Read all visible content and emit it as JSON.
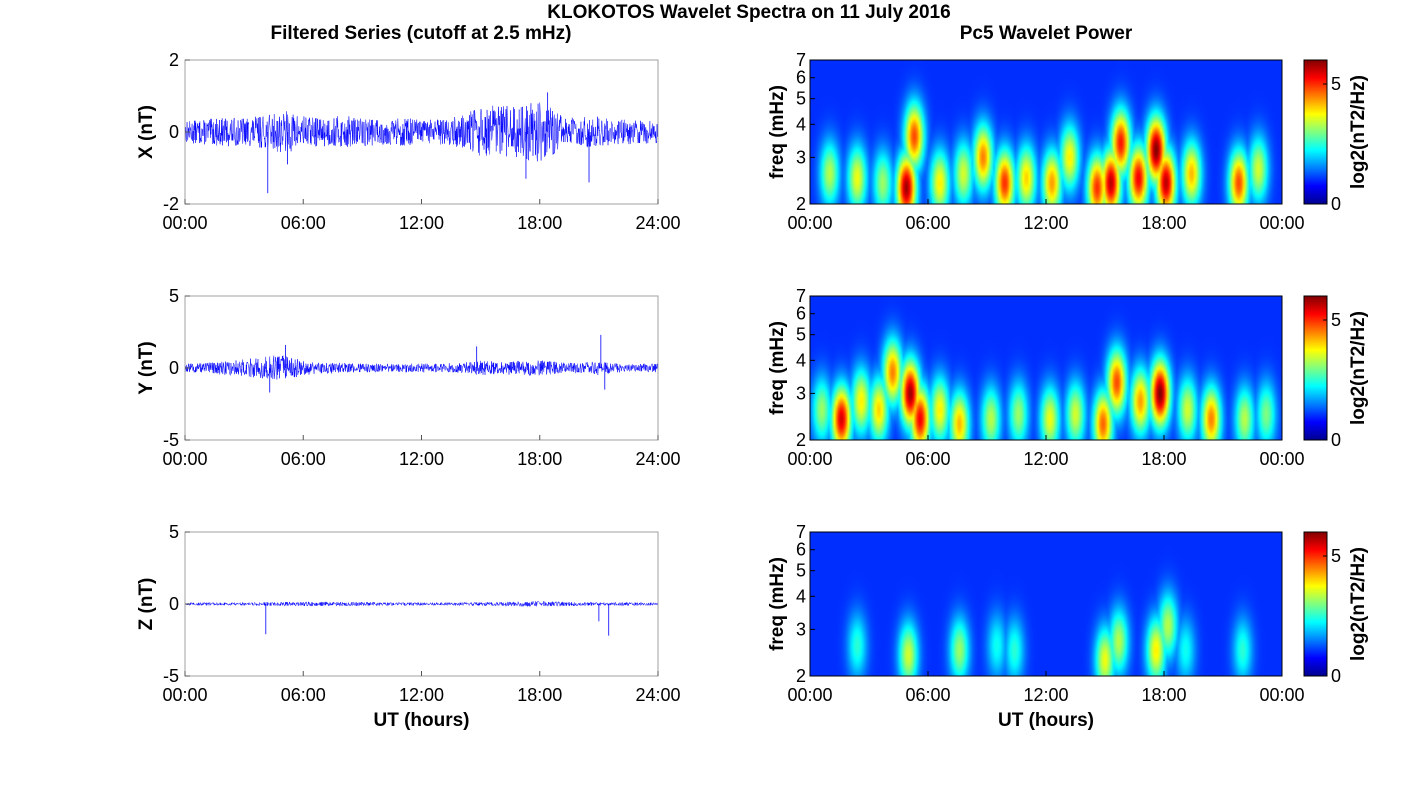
{
  "figure": {
    "title": "KLOKOTOS Wavelet Spectra on 11 July 2016",
    "left_title": "Filtered Series (cutoff at 2.5 mHz)",
    "right_title": "Pc5 Wavelet Power"
  },
  "chart_data": [
    {
      "type": "line",
      "component": "X",
      "ylabel": "X (nT)",
      "ylim": [
        -2,
        2
      ],
      "yticks": [
        "2",
        "0",
        "-2"
      ],
      "xlim": [
        "00:00",
        "24:00"
      ],
      "xticks": [
        "00:00",
        "06:00",
        "12:00",
        "18:00",
        "24:00"
      ],
      "xlabel": "",
      "series_color": "#0000ff",
      "envelope": {
        "hours": [
          0,
          1,
          2,
          3,
          4,
          5,
          6,
          7,
          8,
          9,
          10,
          11,
          12,
          13,
          14,
          15,
          16,
          17,
          18,
          19,
          20,
          21,
          22,
          23,
          24
        ],
        "amplitude_nT": [
          0.3,
          0.35,
          0.4,
          0.4,
          0.45,
          0.6,
          0.45,
          0.4,
          0.45,
          0.4,
          0.35,
          0.4,
          0.35,
          0.35,
          0.45,
          0.7,
          0.75,
          0.7,
          0.9,
          0.5,
          0.4,
          0.45,
          0.35,
          0.35,
          0.3
        ]
      },
      "spikes": [
        {
          "hour": 4.2,
          "value_nT": -1.7
        },
        {
          "hour": 5.2,
          "value_nT": -0.9
        },
        {
          "hour": 17.3,
          "value_nT": -1.3
        },
        {
          "hour": 18.4,
          "value_nT": 1.1
        },
        {
          "hour": 20.5,
          "value_nT": -1.4
        }
      ]
    },
    {
      "type": "line",
      "component": "Y",
      "ylabel": "Y (nT)",
      "ylim": [
        -5,
        5
      ],
      "yticks": [
        "5",
        "0",
        "-5"
      ],
      "xlim": [
        "00:00",
        "24:00"
      ],
      "xticks": [
        "00:00",
        "06:00",
        "12:00",
        "18:00",
        "24:00"
      ],
      "xlabel": "",
      "series_color": "#0000ff",
      "envelope": {
        "hours": [
          0,
          1,
          2,
          3,
          4,
          5,
          6,
          7,
          8,
          9,
          10,
          11,
          12,
          13,
          14,
          15,
          16,
          17,
          18,
          19,
          20,
          21,
          22,
          23,
          24
        ],
        "amplitude_nT": [
          0.3,
          0.35,
          0.5,
          0.6,
          0.8,
          0.9,
          0.5,
          0.4,
          0.35,
          0.3,
          0.3,
          0.3,
          0.3,
          0.3,
          0.4,
          0.5,
          0.45,
          0.5,
          0.6,
          0.4,
          0.35,
          0.5,
          0.3,
          0.3,
          0.3
        ]
      },
      "spikes": [
        {
          "hour": 4.3,
          "value_nT": -1.7
        },
        {
          "hour": 5.1,
          "value_nT": 1.6
        },
        {
          "hour": 14.8,
          "value_nT": 1.5
        },
        {
          "hour": 21.1,
          "value_nT": 2.3
        },
        {
          "hour": 21.3,
          "value_nT": -1.5
        }
      ]
    },
    {
      "type": "line",
      "component": "Z",
      "ylabel": "Z (nT)",
      "ylim": [
        -5,
        5
      ],
      "yticks": [
        "5",
        "0",
        "-5"
      ],
      "xlim": [
        "00:00",
        "24:00"
      ],
      "xticks": [
        "00:00",
        "06:00",
        "12:00",
        "18:00",
        "24:00"
      ],
      "xlabel": "UT (hours)",
      "series_color": "#0000ff",
      "envelope": {
        "hours": [
          0,
          2,
          4,
          6,
          8,
          10,
          12,
          14,
          16,
          18,
          20,
          22,
          24
        ],
        "amplitude_nT": [
          0.1,
          0.1,
          0.12,
          0.15,
          0.15,
          0.12,
          0.1,
          0.12,
          0.15,
          0.2,
          0.12,
          0.12,
          0.1
        ]
      },
      "spikes": [
        {
          "hour": 4.1,
          "value_nT": -2.1
        },
        {
          "hour": 21.0,
          "value_nT": -1.2
        },
        {
          "hour": 21.5,
          "value_nT": -2.2
        }
      ]
    },
    {
      "type": "heatmap",
      "component": "X",
      "ylabel": "freq (mHz)",
      "yscale": "log",
      "ylim": [
        2,
        7
      ],
      "yticks": [
        "2",
        "3",
        "4",
        "5",
        "6",
        "7"
      ],
      "xlim": [
        "00:00",
        "00:00"
      ],
      "xticks": [
        "00:00",
        "06:00",
        "12:00",
        "18:00",
        "00:00"
      ],
      "xlabel": "",
      "colormap": "jet",
      "colorbar": {
        "label": "log2(nT2/Hz)",
        "range": [
          0,
          6
        ],
        "ticks": [
          "0",
          "5"
        ]
      },
      "blobs": [
        {
          "hour": 1.0,
          "freq": 2.6,
          "power": 2.8
        },
        {
          "hour": 2.4,
          "freq": 2.5,
          "power": 3.2
        },
        {
          "hour": 3.7,
          "freq": 2.4,
          "power": 2.6
        },
        {
          "hour": 4.9,
          "freq": 2.3,
          "power": 5.8
        },
        {
          "hour": 5.3,
          "freq": 3.6,
          "power": 4.6
        },
        {
          "hour": 6.6,
          "freq": 2.4,
          "power": 3.4
        },
        {
          "hour": 7.8,
          "freq": 2.6,
          "power": 3.0
        },
        {
          "hour": 8.8,
          "freq": 3.0,
          "power": 4.2
        },
        {
          "hour": 9.9,
          "freq": 2.4,
          "power": 4.8
        },
        {
          "hour": 11.0,
          "freq": 2.5,
          "power": 3.6
        },
        {
          "hour": 12.3,
          "freq": 2.4,
          "power": 4.0
        },
        {
          "hour": 13.2,
          "freq": 3.0,
          "power": 3.4
        },
        {
          "hour": 14.6,
          "freq": 2.3,
          "power": 4.8
        },
        {
          "hour": 15.3,
          "freq": 2.4,
          "power": 5.6
        },
        {
          "hour": 15.8,
          "freq": 3.4,
          "power": 5.0
        },
        {
          "hour": 16.7,
          "freq": 2.5,
          "power": 5.2
        },
        {
          "hour": 17.6,
          "freq": 3.2,
          "power": 6.0
        },
        {
          "hour": 18.1,
          "freq": 2.4,
          "power": 5.6
        },
        {
          "hour": 19.4,
          "freq": 2.6,
          "power": 3.8
        },
        {
          "hour": 21.8,
          "freq": 2.4,
          "power": 4.6
        },
        {
          "hour": 22.8,
          "freq": 2.7,
          "power": 3.0
        }
      ]
    },
    {
      "type": "heatmap",
      "component": "Y",
      "ylabel": "freq (mHz)",
      "yscale": "log",
      "ylim": [
        2,
        7
      ],
      "yticks": [
        "2",
        "3",
        "4",
        "5",
        "6",
        "7"
      ],
      "xlim": [
        "00:00",
        "00:00"
      ],
      "xticks": [
        "00:00",
        "06:00",
        "12:00",
        "18:00",
        "00:00"
      ],
      "xlabel": "",
      "colormap": "jet",
      "colorbar": {
        "label": "log2(nT2/Hz)",
        "range": [
          0,
          6
        ],
        "ticks": [
          "0",
          "5"
        ]
      },
      "blobs": [
        {
          "hour": 0.6,
          "freq": 2.6,
          "power": 2.6
        },
        {
          "hour": 1.6,
          "freq": 2.4,
          "power": 5.4
        },
        {
          "hour": 2.6,
          "freq": 2.8,
          "power": 3.4
        },
        {
          "hour": 3.5,
          "freq": 2.6,
          "power": 3.6
        },
        {
          "hour": 4.2,
          "freq": 3.6,
          "power": 4.2
        },
        {
          "hour": 5.1,
          "freq": 3.0,
          "power": 5.8
        },
        {
          "hour": 5.6,
          "freq": 2.4,
          "power": 5.2
        },
        {
          "hour": 6.6,
          "freq": 2.6,
          "power": 3.4
        },
        {
          "hour": 7.6,
          "freq": 2.3,
          "power": 3.8
        },
        {
          "hour": 9.2,
          "freq": 2.4,
          "power": 2.8
        },
        {
          "hour": 10.6,
          "freq": 2.5,
          "power": 2.6
        },
        {
          "hour": 12.2,
          "freq": 2.4,
          "power": 3.2
        },
        {
          "hour": 13.5,
          "freq": 2.5,
          "power": 3.0
        },
        {
          "hour": 14.9,
          "freq": 2.3,
          "power": 4.4
        },
        {
          "hour": 15.6,
          "freq": 3.3,
          "power": 4.6
        },
        {
          "hour": 16.8,
          "freq": 2.8,
          "power": 4.0
        },
        {
          "hour": 17.8,
          "freq": 3.0,
          "power": 6.0
        },
        {
          "hour": 19.2,
          "freq": 2.6,
          "power": 3.0
        },
        {
          "hour": 20.4,
          "freq": 2.4,
          "power": 4.2
        },
        {
          "hour": 22.1,
          "freq": 2.4,
          "power": 2.8
        },
        {
          "hour": 23.2,
          "freq": 2.5,
          "power": 2.4
        }
      ]
    },
    {
      "type": "heatmap",
      "component": "Z",
      "ylabel": "freq (mHz)",
      "yscale": "log",
      "ylim": [
        2,
        7
      ],
      "yticks": [
        "2",
        "3",
        "4",
        "5",
        "6",
        "7"
      ],
      "xlim": [
        "00:00",
        "00:00"
      ],
      "xticks": [
        "00:00",
        "06:00",
        "12:00",
        "18:00",
        "00:00"
      ],
      "xlabel": "UT (hours)",
      "colormap": "jet",
      "colorbar": {
        "label": "log2(nT2/Hz)",
        "range": [
          0,
          6
        ],
        "ticks": [
          "0",
          "5"
        ]
      },
      "blobs": [
        {
          "hour": 2.4,
          "freq": 2.6,
          "power": 1.8
        },
        {
          "hour": 5.0,
          "freq": 2.4,
          "power": 3.0
        },
        {
          "hour": 7.6,
          "freq": 2.5,
          "power": 2.6
        },
        {
          "hour": 9.5,
          "freq": 2.6,
          "power": 1.6
        },
        {
          "hour": 10.4,
          "freq": 2.5,
          "power": 1.8
        },
        {
          "hour": 15.0,
          "freq": 2.3,
          "power": 3.2
        },
        {
          "hour": 15.7,
          "freq": 2.7,
          "power": 2.8
        },
        {
          "hour": 17.6,
          "freq": 2.5,
          "power": 3.4
        },
        {
          "hour": 18.2,
          "freq": 3.1,
          "power": 2.8
        },
        {
          "hour": 19.1,
          "freq": 2.5,
          "power": 1.6
        },
        {
          "hour": 22.0,
          "freq": 2.5,
          "power": 1.8
        }
      ]
    }
  ]
}
